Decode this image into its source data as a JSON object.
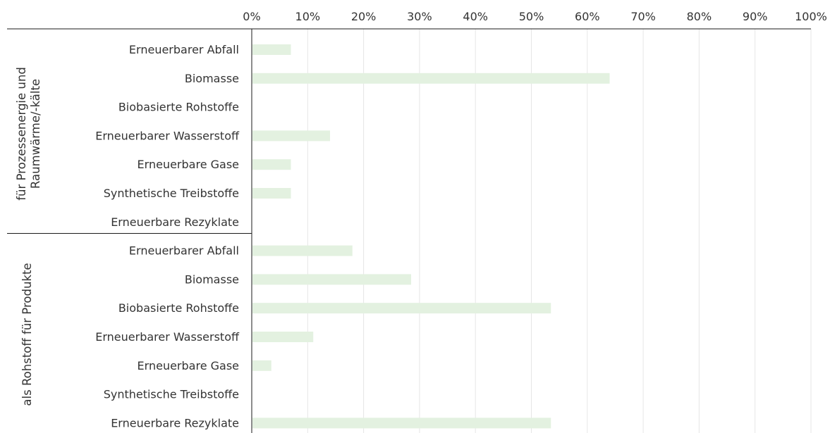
{
  "chart_data": {
    "type": "bar",
    "orientation": "horizontal",
    "xlim": [
      0,
      100
    ],
    "x_ticks": [
      "0%",
      "10%",
      "20%",
      "30%",
      "40%",
      "50%",
      "60%",
      "70%",
      "80%",
      "90%",
      "100%"
    ],
    "grid": true,
    "bar_color": "#e3f1e0",
    "groups": [
      {
        "label_lines": [
          "für Prozessenergie und",
          "Raumwärme/-kälte"
        ],
        "categories": [
          "Erneuerbarer Abfall",
          "Biomasse",
          "Biobasierte Rohstoffe",
          "Erneuerbarer Wasserstoff",
          "Erneuerbare Gase",
          "Synthetische Treibstoffe",
          "Erneuerbare Rezyklate"
        ],
        "values": [
          7,
          64,
          0,
          14,
          7,
          7,
          0
        ]
      },
      {
        "label_lines": [
          "als Rohstoff für Produkte"
        ],
        "categories": [
          "Erneuerbarer Abfall",
          "Biomasse",
          "Biobasierte Rohstoffe",
          "Erneuerbarer Wasserstoff",
          "Erneuerbare Gase",
          "Synthetische Treibstoffe",
          "Erneuerbare Rezyklate"
        ],
        "values": [
          18,
          28.5,
          53.5,
          11,
          3.5,
          0,
          53.5
        ]
      }
    ]
  }
}
